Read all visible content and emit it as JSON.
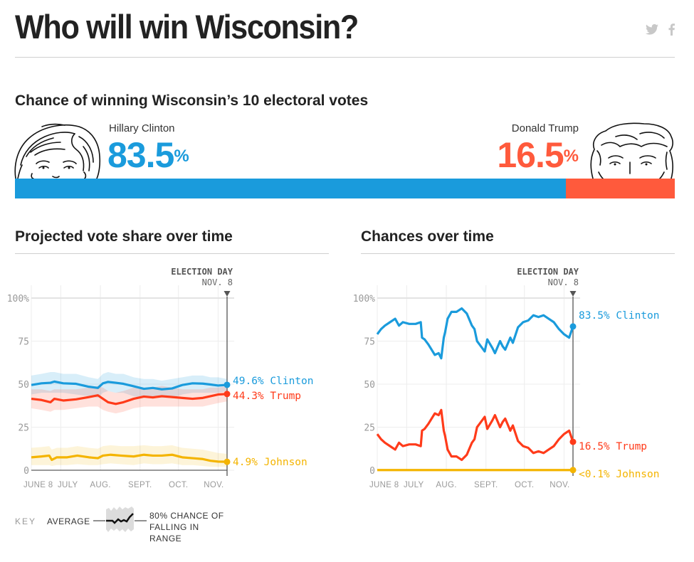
{
  "header": {
    "title": "Who will win Wisconsin?",
    "share_icons": [
      "twitter-icon",
      "facebook-icon"
    ]
  },
  "chance": {
    "heading": "Chance of winning Wisconsin’s 10 electoral votes",
    "clinton": {
      "name": "Hillary Clinton",
      "value": "83.5",
      "unit": "%",
      "color": "#1a9bdc",
      "share": 83.5
    },
    "trump": {
      "name": "Donald Trump",
      "value": "16.5",
      "unit": "%",
      "color": "#ff5a3c",
      "share": 16.5
    }
  },
  "sections": {
    "vote_share": "Projected vote share over time",
    "chances": "Chances over time"
  },
  "key": {
    "label": "KEY",
    "average": "AVERAGE",
    "range": "80% CHANCE OF FALLING IN RANGE"
  },
  "chart_data": [
    {
      "type": "line",
      "title": "Projected vote share over time",
      "xlabel": "",
      "ylabel": "",
      "ylim": [
        0,
        100
      ],
      "yticks": [
        "0",
        "25",
        "50",
        "75",
        "100%"
      ],
      "ytick_values": [
        0,
        25,
        50,
        75,
        100
      ],
      "xticks": [
        "JUNE 8",
        "JULY",
        "AUG.",
        "SEPT.",
        "OCT.",
        "NOV."
      ],
      "xtick_days": [
        0,
        23,
        54,
        85,
        115,
        146
      ],
      "xlim_days": [
        0,
        153
      ],
      "marker": {
        "label": "ELECTION DAY",
        "date": "NOV. 8",
        "day": 153
      },
      "grid": true,
      "series": [
        {
          "name": "Clinton",
          "color": "#1a9bdc",
          "final_label": "49.6% Clinton",
          "final_value": 49.6,
          "x": [
            0,
            8,
            15,
            18,
            25,
            35,
            45,
            52,
            56,
            60,
            66,
            72,
            80,
            88,
            95,
            102,
            110,
            118,
            126,
            134,
            140,
            146,
            153
          ],
          "y": [
            49.5,
            50.5,
            50.8,
            51.5,
            50.5,
            50.2,
            48.5,
            47.8,
            50.5,
            51.3,
            50.8,
            50.2,
            48.8,
            47.3,
            47.8,
            47.0,
            47.5,
            49.5,
            50.5,
            50.3,
            49.8,
            49.2,
            49.6
          ],
          "band_low": [
            44,
            45,
            45,
            45,
            45,
            44,
            43,
            42,
            45,
            46,
            45,
            45,
            43,
            42,
            42,
            42,
            42,
            44,
            45,
            45,
            45,
            45,
            46
          ],
          "band_high": [
            55,
            56,
            57,
            57,
            56,
            56,
            54,
            53,
            56,
            57,
            56,
            56,
            54,
            53,
            53,
            52,
            53,
            54,
            55,
            55,
            54,
            54,
            53
          ]
        },
        {
          "name": "Trump",
          "color": "#ff3b1a",
          "final_label": "44.3% Trump",
          "final_value": 44.3,
          "x": [
            0,
            8,
            15,
            18,
            25,
            35,
            45,
            52,
            56,
            60,
            66,
            72,
            80,
            88,
            95,
            102,
            110,
            118,
            126,
            134,
            140,
            146,
            153
          ],
          "y": [
            41.5,
            40.8,
            39.5,
            41.5,
            40.5,
            41.2,
            42.5,
            43.5,
            41.5,
            39.5,
            38.5,
            39.5,
            41.5,
            42.8,
            42.3,
            43.0,
            42.5,
            42.0,
            41.5,
            42.0,
            43.0,
            44.0,
            44.3
          ],
          "band_low": [
            36,
            35,
            34,
            35,
            35,
            36,
            37,
            37,
            35,
            34,
            33,
            34,
            36,
            37,
            37,
            37,
            37,
            37,
            37,
            37,
            38,
            39,
            40
          ],
          "band_high": [
            47,
            47,
            46,
            47,
            47,
            47,
            48,
            49,
            48,
            46,
            45,
            46,
            48,
            48,
            48,
            49,
            48,
            47,
            47,
            47,
            48,
            48,
            49
          ]
        },
        {
          "name": "Johnson",
          "color": "#f4b400",
          "final_label": "4.9% Johnson",
          "final_value": 4.9,
          "x": [
            0,
            8,
            14,
            16,
            20,
            28,
            36,
            45,
            52,
            56,
            62,
            70,
            80,
            88,
            95,
            102,
            110,
            118,
            126,
            134,
            140,
            146,
            153
          ],
          "y": [
            7.5,
            8.0,
            8.5,
            6.0,
            7.5,
            7.5,
            8.5,
            7.5,
            7.0,
            8.5,
            9.0,
            8.5,
            8.0,
            9.0,
            8.5,
            8.5,
            9.0,
            7.5,
            7.0,
            6.5,
            5.5,
            5.0,
            4.9
          ],
          "band_low": [
            3,
            3,
            3,
            2.5,
            3,
            3,
            3.5,
            3,
            3,
            3.5,
            4,
            3.5,
            3,
            4,
            3.5,
            3.5,
            4,
            3,
            3,
            2.5,
            2,
            2,
            2
          ],
          "band_high": [
            13,
            13.5,
            14,
            12,
            13,
            13,
            14,
            13,
            12.5,
            14,
            14.5,
            14,
            14,
            14.5,
            14,
            14,
            14.5,
            13,
            12.5,
            12,
            11,
            10,
            9.5
          ]
        }
      ]
    },
    {
      "type": "line",
      "title": "Chances over time",
      "xlabel": "",
      "ylabel": "",
      "ylim": [
        0,
        100
      ],
      "yticks": [
        "0",
        "25",
        "50",
        "75",
        "100%"
      ],
      "ytick_values": [
        0,
        25,
        50,
        75,
        100
      ],
      "xticks": [
        "JUNE 8",
        "JULY",
        "AUG.",
        "SEPT.",
        "OCT.",
        "NOV."
      ],
      "xtick_days": [
        0,
        23,
        54,
        85,
        115,
        146
      ],
      "xlim_days": [
        0,
        153
      ],
      "marker": {
        "label": "ELECTION DAY",
        "date": "NOV. 8",
        "day": 153
      },
      "grid": true,
      "series": [
        {
          "name": "Clinton",
          "color": "#1a9bdc",
          "final_label": "83.5% Clinton",
          "final_value": 83.5,
          "x": [
            0,
            3,
            6,
            10,
            14,
            17,
            20,
            25,
            30,
            34,
            35,
            37,
            40,
            45,
            48,
            50,
            52,
            53,
            55,
            58,
            62,
            66,
            70,
            74,
            76,
            78,
            80,
            84,
            86,
            90,
            92,
            96,
            98,
            100,
            104,
            106,
            110,
            114,
            118,
            122,
            126,
            130,
            134,
            138,
            142,
            146,
            148,
            150,
            153
          ],
          "y": [
            79,
            82,
            84,
            86,
            88,
            84,
            86,
            85,
            85,
            86,
            77,
            76,
            73,
            67,
            68,
            65,
            77,
            80,
            88,
            92,
            92,
            94,
            91,
            84,
            82,
            75,
            73,
            69,
            76,
            71,
            68,
            75,
            72,
            70,
            77,
            74,
            83,
            86,
            87,
            90,
            89,
            90,
            88,
            86,
            82,
            79,
            78,
            77,
            83.5
          ]
        },
        {
          "name": "Trump",
          "color": "#ff3b1a",
          "final_label": "16.5% Trump",
          "final_value": 16.5,
          "x": [
            0,
            3,
            6,
            10,
            14,
            17,
            20,
            25,
            30,
            34,
            35,
            37,
            40,
            45,
            48,
            50,
            52,
            53,
            55,
            58,
            62,
            66,
            70,
            74,
            76,
            78,
            80,
            84,
            86,
            90,
            92,
            96,
            98,
            100,
            104,
            106,
            110,
            114,
            118,
            122,
            126,
            130,
            134,
            138,
            142,
            146,
            148,
            150,
            153
          ],
          "y": [
            21,
            18,
            16,
            14,
            12,
            16,
            14,
            15,
            15,
            14,
            23,
            24,
            27,
            33,
            32,
            35,
            23,
            20,
            12,
            8,
            8,
            6,
            9,
            16,
            18,
            25,
            27,
            31,
            24,
            29,
            32,
            25,
            28,
            30,
            23,
            26,
            17,
            14,
            13,
            10,
            11,
            10,
            12,
            14,
            18,
            21,
            22,
            23,
            16.5
          ]
        },
        {
          "name": "Johnson",
          "color": "#f4b400",
          "final_label": "<0.1% Johnson",
          "final_value": 0.1,
          "x": [
            0,
            153
          ],
          "y": [
            0.1,
            0.1
          ]
        }
      ]
    }
  ]
}
